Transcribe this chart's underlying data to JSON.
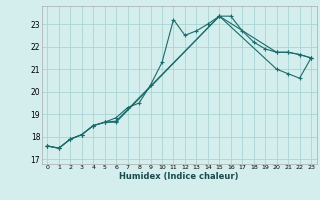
{
  "xlabel": "Humidex (Indice chaleur)",
  "background_color": "#d4eeee",
  "grid_color": "#aad4d4",
  "line_color": "#1a6b6b",
  "xlim": [
    -0.5,
    23.5
  ],
  "ylim": [
    16.8,
    23.8
  ],
  "yticks": [
    17,
    18,
    19,
    20,
    21,
    22,
    23
  ],
  "xticks": [
    0,
    1,
    2,
    3,
    4,
    5,
    6,
    7,
    8,
    9,
    10,
    11,
    12,
    13,
    14,
    15,
    16,
    17,
    18,
    19,
    20,
    21,
    22,
    23
  ],
  "line1_x": [
    0,
    1,
    2,
    3,
    4,
    5,
    6,
    7,
    8,
    9,
    10,
    11,
    12,
    13,
    14,
    15,
    16,
    17,
    18,
    19,
    20,
    21,
    22,
    23
  ],
  "line1_y": [
    17.6,
    17.5,
    17.9,
    18.1,
    18.5,
    18.65,
    18.85,
    19.3,
    19.5,
    20.3,
    21.3,
    23.2,
    22.5,
    22.7,
    23.0,
    23.35,
    23.35,
    22.7,
    22.2,
    21.9,
    21.75,
    21.75,
    21.65,
    21.5
  ],
  "line2_x": [
    0,
    1,
    2,
    3,
    4,
    5,
    6,
    15,
    20,
    21,
    22,
    23
  ],
  "line2_y": [
    17.6,
    17.5,
    17.9,
    18.1,
    18.5,
    18.65,
    18.7,
    23.35,
    21.75,
    21.75,
    21.65,
    21.5
  ],
  "line3_x": [
    0,
    1,
    2,
    3,
    4,
    5,
    6,
    15,
    20,
    21,
    22,
    23
  ],
  "line3_y": [
    17.6,
    17.5,
    17.9,
    18.1,
    18.5,
    18.65,
    18.65,
    23.35,
    21.0,
    20.8,
    20.6,
    21.5
  ]
}
